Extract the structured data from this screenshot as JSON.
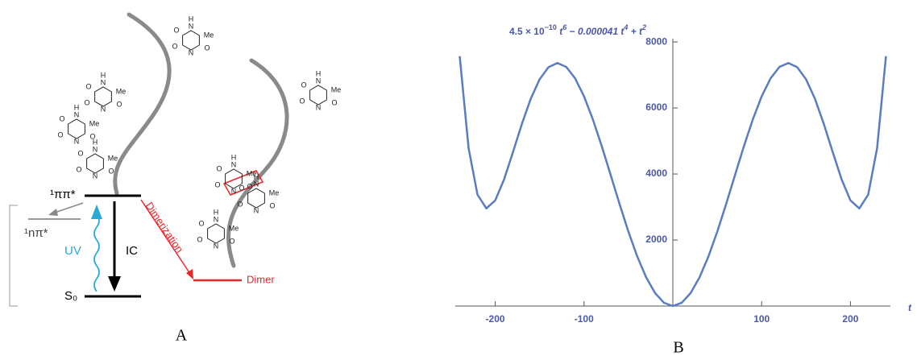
{
  "panel_a": {
    "label": "A",
    "pipi_state": "¹ππ*",
    "npi_state": "¹nπ*",
    "uv": "UV",
    "ic": "IC",
    "ground_state": "S₀",
    "dimerization": "Dimerization",
    "dimer": "Dimer",
    "atoms": [
      "O",
      "N",
      "H",
      "Me"
    ]
  },
  "panel_b_label": "B",
  "chart_data": {
    "type": "line",
    "title_parts": [
      "4.5 × 10",
      "−10",
      " t",
      "6",
      " − 0.000041 t",
      "4",
      " + t",
      "2"
    ],
    "x_label": "t",
    "x": [
      -240,
      -230,
      -220,
      -210,
      -200,
      -190,
      -180,
      -170,
      -160,
      -150,
      -140,
      -130,
      -120,
      -110,
      -100,
      -90,
      -80,
      -70,
      -60,
      -50,
      -40,
      -30,
      -20,
      -10,
      0,
      10,
      20,
      30,
      40,
      50,
      60,
      70,
      80,
      90,
      100,
      110,
      120,
      130,
      140,
      150,
      160,
      170,
      180,
      190,
      200,
      210,
      220,
      230,
      240
    ],
    "series": [
      {
        "color": "#5a7cc0",
        "values": [
          7568.1,
          4781.4,
          3376.0,
          2957.5,
          3200,
          3839.1,
          4665.3,
          5518.3,
          6280.0,
          6869.5,
          7237.7,
          7362.0,
          7241.9,
          6894.4,
          6350,
          5649.1,
          4838.6,
          3968.5,
          3089.6,
          2250.8,
          1496.9,
          867.1,
          393.5,
          99.59,
          0,
          99.59,
          393.5,
          867.1,
          1496.9,
          2250.8,
          3089.6,
          3968.5,
          4838.6,
          5649.1,
          6350,
          6894.4,
          7241.9,
          7362.0,
          7237.7,
          6869.5,
          6280.0,
          5518.3,
          4665.3,
          3839.1,
          3200,
          2957.5,
          3376.0,
          4781.4,
          7568.1
        ]
      }
    ],
    "xlim": [
      -245,
      245
    ],
    "ylim": [
      0,
      8100
    ],
    "xticks": [
      -200,
      -100,
      100,
      200
    ],
    "yticks": [
      2000,
      4000,
      6000,
      8000
    ]
  }
}
